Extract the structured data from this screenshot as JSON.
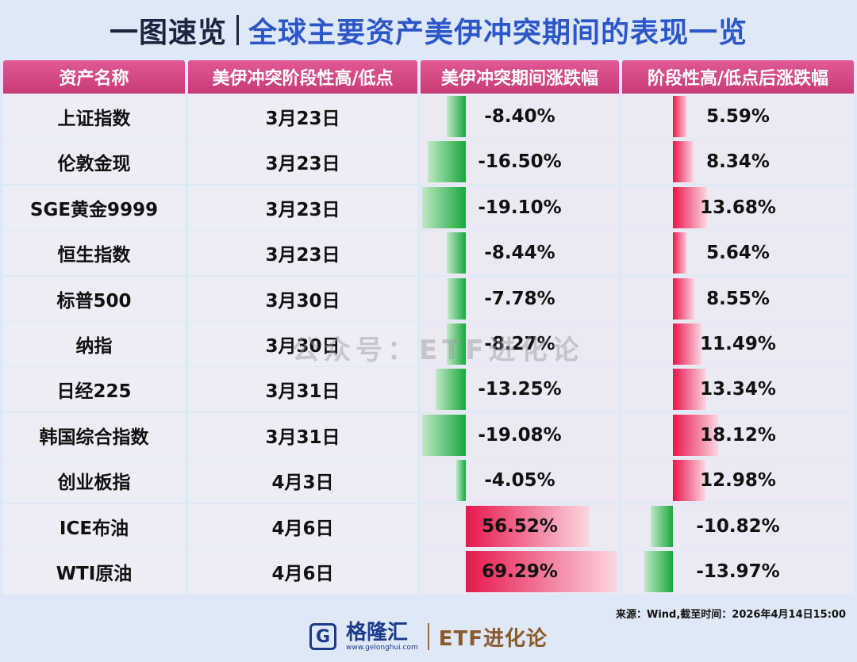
{
  "title": {
    "left": "一图速览",
    "right": "全球主要资产美伊冲突期间的表现一览"
  },
  "headers": [
    "资产名称",
    "美伊冲突阶段性高/低点",
    "美伊冲突期间涨跌幅",
    "阶段性高/低点后涨跌幅"
  ],
  "watermark": "公众号：ETF进化论",
  "footnote": "来源：Wind,截至时间：2026年4月14日15:00",
  "footer": {
    "logo_letter": "G",
    "brand": "格隆汇",
    "url": "www.gelonghui.com",
    "etf": "ETF进化论"
  },
  "colors": {
    "header": "#d94a88",
    "negative": "#18a83c",
    "positive": "#e8174c",
    "title_right": "#2c57c8"
  },
  "chart_data": {
    "type": "table",
    "columns": [
      "资产名称",
      "美伊冲突阶段性高/低点",
      "美伊冲突期间涨跌幅",
      "阶段性高/低点后涨跌幅"
    ],
    "rows": [
      {
        "name": "上证指数",
        "date": "3月23日",
        "change": "-8.40%",
        "change_value": -8.4,
        "after": "5.59%",
        "after_value": 5.59
      },
      {
        "name": "伦敦金现",
        "date": "3月23日",
        "change": "-16.50%",
        "change_value": -16.5,
        "after": "8.34%",
        "after_value": 8.34
      },
      {
        "name": "SGE黄金9999",
        "date": "3月23日",
        "change": "-19.10%",
        "change_value": -19.1,
        "after": "13.68%",
        "after_value": 13.68
      },
      {
        "name": "恒生指数",
        "date": "3月23日",
        "change": "-8.44%",
        "change_value": -8.44,
        "after": "5.64%",
        "after_value": 5.64
      },
      {
        "name": "标普500",
        "date": "3月30日",
        "change": "-7.78%",
        "change_value": -7.78,
        "after": "8.55%",
        "after_value": 8.55
      },
      {
        "name": "纳指",
        "date": "3月30日",
        "change": "-8.27%",
        "change_value": -8.27,
        "after": "11.49%",
        "after_value": 11.49
      },
      {
        "name": "日经225",
        "date": "3月31日",
        "change": "-13.25%",
        "change_value": -13.25,
        "after": "13.34%",
        "after_value": 13.34
      },
      {
        "name": "韩国综合指数",
        "date": "3月31日",
        "change": "-19.08%",
        "change_value": -19.08,
        "after": "18.12%",
        "after_value": 18.12
      },
      {
        "name": "创业板指",
        "date": "4月3日",
        "change": "-4.05%",
        "change_value": -4.05,
        "after": "12.98%",
        "after_value": 12.98
      },
      {
        "name": "ICE布油",
        "date": "4月6日",
        "change": "56.52%",
        "change_value": 56.52,
        "after": "-10.82%",
        "after_value": -10.82
      },
      {
        "name": "WTI原油",
        "date": "4月6日",
        "change": "69.29%",
        "change_value": 69.29,
        "after": "-13.97%",
        "after_value": -13.97
      }
    ]
  }
}
